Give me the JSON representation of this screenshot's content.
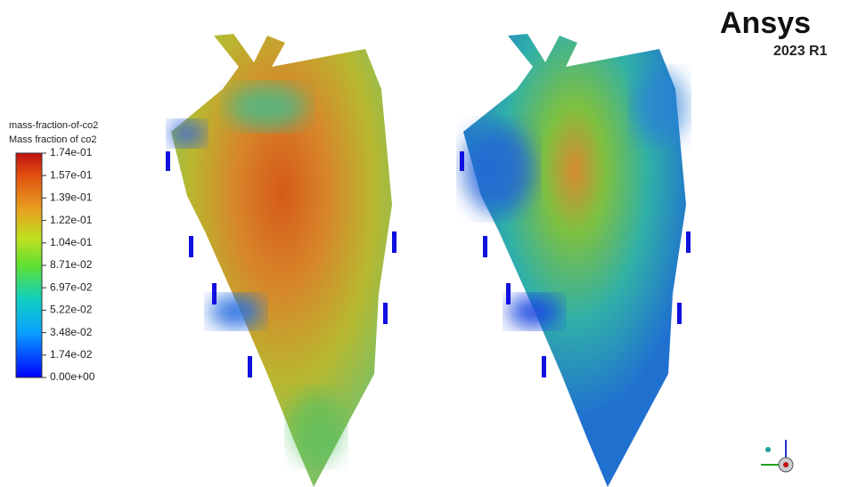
{
  "legend": {
    "title": [
      "mass-fraction-of-co2",
      "Mass fraction of co2"
    ],
    "labels": [
      "1.74e-01",
      "1.57e-01",
      "1.39e-01",
      "1.22e-01",
      "1.04e-01",
      "8.71e-02",
      "6.97e-02",
      "5.22e-02",
      "3.48e-02",
      "1.74e-02",
      "0.00e+00"
    ]
  },
  "logo": {
    "brand": "Ansys",
    "version": "2023 R1"
  }
}
